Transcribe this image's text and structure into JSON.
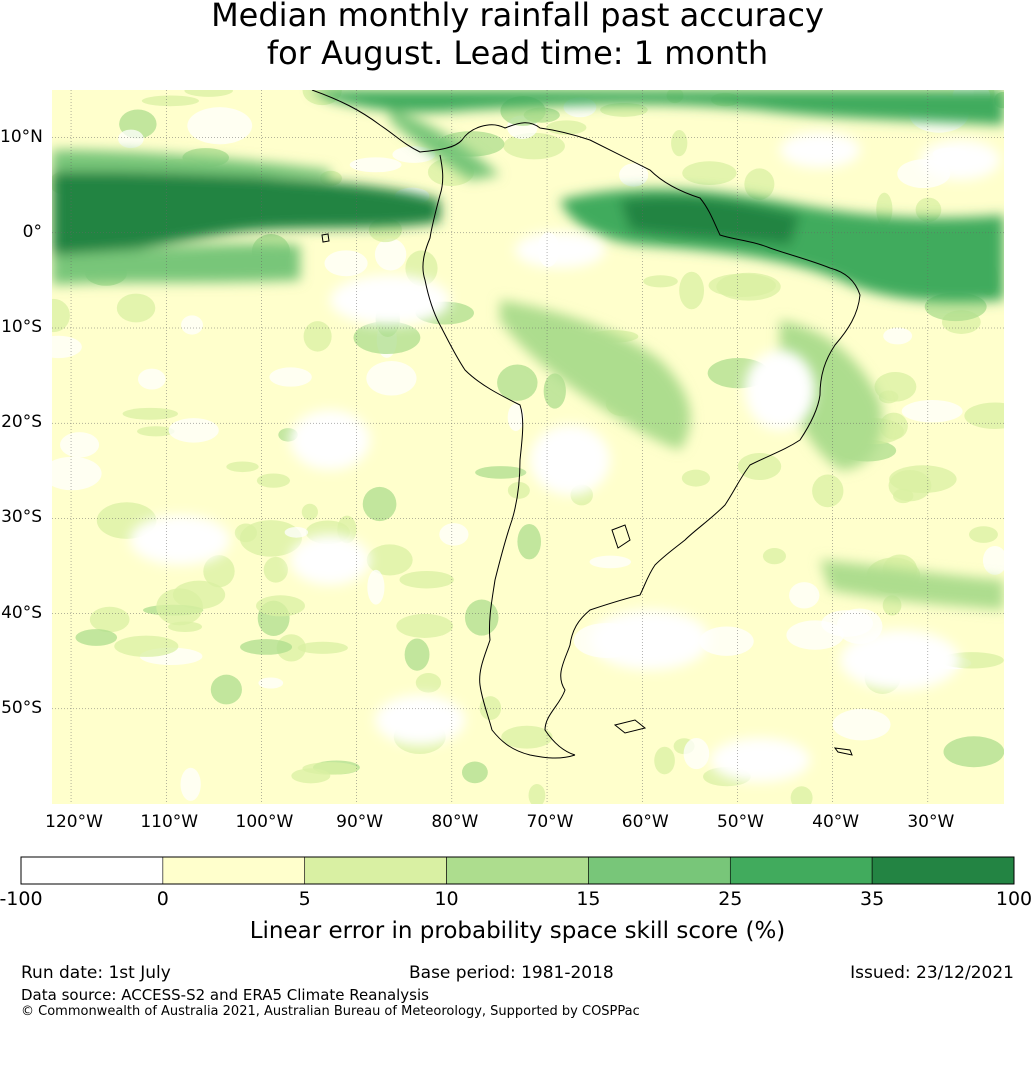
{
  "title": {
    "line1": "Median monthly rainfall past accuracy",
    "line2": "for August. Lead time: 1 month"
  },
  "map": {
    "extent": {
      "lon_min": -122,
      "lon_max": -22,
      "lat_min": -60,
      "lat_max": 15
    },
    "lat_ticks": [
      {
        "lat": 10,
        "label": "10°N"
      },
      {
        "lat": 0,
        "label": "0°"
      },
      {
        "lat": -10,
        "label": "10°S"
      },
      {
        "lat": -20,
        "label": "20°S"
      },
      {
        "lat": -30,
        "label": "30°S"
      },
      {
        "lat": -40,
        "label": "40°S"
      },
      {
        "lat": -50,
        "label": "50°S"
      }
    ],
    "lon_ticks": [
      {
        "lon": -120,
        "label": "120°W"
      },
      {
        "lon": -110,
        "label": "110°W"
      },
      {
        "lon": -100,
        "label": "100°W"
      },
      {
        "lon": -90,
        "label": "90°W"
      },
      {
        "lon": -80,
        "label": "80°W"
      },
      {
        "lon": -70,
        "label": "70°W"
      },
      {
        "lon": -60,
        "label": "60°W"
      },
      {
        "lon": -50,
        "label": "50°W"
      },
      {
        "lon": -40,
        "label": "40°W"
      },
      {
        "lon": -30,
        "label": "30°W"
      }
    ],
    "skill_bands": [
      {
        "name": "equatorial-pacific-high-skill",
        "level": 6
      },
      {
        "name": "north-amazon-atlantic-skill",
        "level": 5
      },
      {
        "name": "caribbean-skill",
        "level": 5
      }
    ]
  },
  "colorbar": {
    "colors": [
      "#ffffff",
      "#ffffcc",
      "#d9f0a3",
      "#addd8e",
      "#78c679",
      "#41ab5d",
      "#238443"
    ],
    "ticks": [
      "-100",
      "0",
      "5",
      "10",
      "15",
      "25",
      "35",
      "100"
    ],
    "label": "Linear error in probability space skill score (%)"
  },
  "footer": {
    "run_date": "Run date: 1st July",
    "base_period": "Base period: 1981-2018",
    "issued": "Issued: 23/12/2021",
    "data_source": "Data source: ACCESS-S2 and ERA5 Climate Reanalysis",
    "copyright": "© Commonwealth of Australia 2021, Australian Bureau of Meteorology, Supported by COSPPac"
  }
}
